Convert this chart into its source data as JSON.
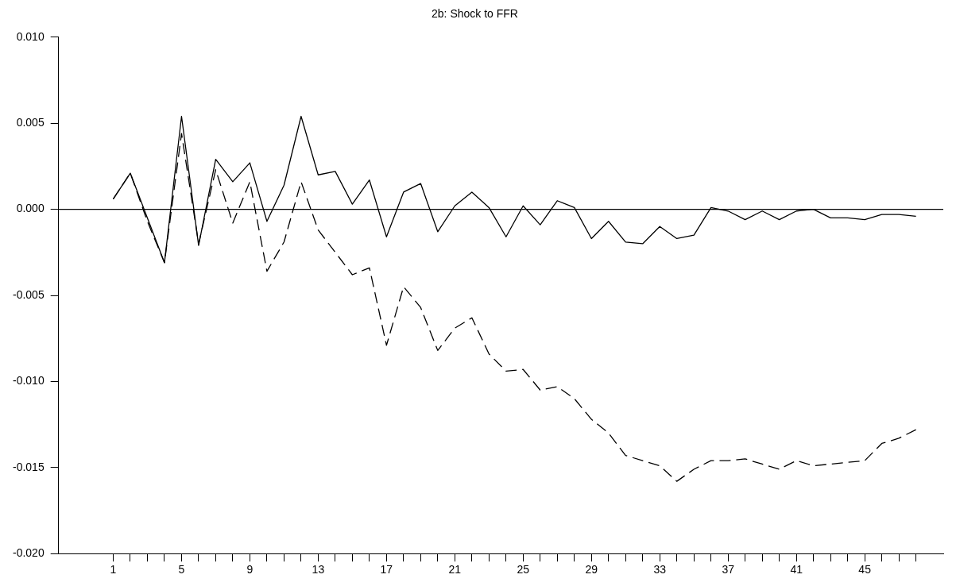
{
  "chart_data": {
    "type": "line",
    "title": "2b: Shock to FFR",
    "x": [
      1,
      2,
      3,
      4,
      5,
      6,
      7,
      8,
      9,
      10,
      11,
      12,
      13,
      14,
      15,
      16,
      17,
      18,
      19,
      20,
      21,
      22,
      23,
      24,
      25,
      26,
      27,
      28,
      29,
      30,
      31,
      32,
      33,
      34,
      35,
      36,
      37,
      38,
      39,
      40,
      41,
      42,
      43,
      44,
      45,
      46,
      47,
      48
    ],
    "xlim": [
      -2.2,
      49.6
    ],
    "xticks": [
      1,
      {
        "value": 2,
        "label": null
      },
      {
        "value": 3,
        "label": null
      },
      {
        "value": 4,
        "label": null
      },
      5,
      {
        "value": 6,
        "label": null
      },
      {
        "value": 7,
        "label": null
      },
      {
        "value": 8,
        "label": null
      },
      9,
      {
        "value": 10,
        "label": null
      },
      {
        "value": 11,
        "label": null
      },
      {
        "value": 12,
        "label": null
      },
      13,
      {
        "value": 14,
        "label": null
      },
      {
        "value": 15,
        "label": null
      },
      {
        "value": 16,
        "label": null
      },
      17,
      {
        "value": 18,
        "label": null
      },
      {
        "value": 19,
        "label": null
      },
      {
        "value": 20,
        "label": null
      },
      21,
      {
        "value": 22,
        "label": null
      },
      {
        "value": 23,
        "label": null
      },
      {
        "value": 24,
        "label": null
      },
      25,
      {
        "value": 26,
        "label": null
      },
      {
        "value": 27,
        "label": null
      },
      {
        "value": 28,
        "label": null
      },
      29,
      {
        "value": 30,
        "label": null
      },
      {
        "value": 31,
        "label": null
      },
      {
        "value": 32,
        "label": null
      },
      33,
      {
        "value": 34,
        "label": null
      },
      {
        "value": 35,
        "label": null
      },
      {
        "value": 36,
        "label": null
      },
      37,
      {
        "value": 38,
        "label": null
      },
      {
        "value": 39,
        "label": null
      },
      {
        "value": 40,
        "label": null
      },
      41,
      {
        "value": 42,
        "label": null
      },
      {
        "value": 43,
        "label": null
      },
      {
        "value": 44,
        "label": null
      },
      45,
      {
        "value": 46,
        "label": null
      },
      {
        "value": 47,
        "label": null
      },
      {
        "value": 48,
        "label": null
      }
    ],
    "ylim": [
      -0.02,
      0.01
    ],
    "yticks": [
      {
        "value": -0.02,
        "label": "-0.020"
      },
      {
        "value": -0.015,
        "label": "-0.015"
      },
      {
        "value": -0.01,
        "label": "-0.010"
      },
      {
        "value": -0.005,
        "label": "-0.005"
      },
      {
        "value": 0,
        "label": "0.000"
      },
      {
        "value": 0.005,
        "label": "0.005"
      },
      {
        "value": 0.01,
        "label": "0.010"
      }
    ],
    "grid": false,
    "legend": false,
    "marker": "none",
    "ref_lines": [
      {
        "axis": "y",
        "value": 0,
        "color": "#000000"
      }
    ],
    "series": [
      {
        "color": "#000000",
        "line_style": "solid",
        "values": [
          0.0006,
          0.0021,
          -0.0005,
          -0.0031,
          0.0054,
          -0.0021,
          0.0029,
          0.0016,
          0.0027,
          -0.0007,
          0.0014,
          0.0054,
          0.002,
          0.0022,
          0.0003,
          0.0017,
          -0.0016,
          0.001,
          0.0015,
          -0.0013,
          0.0002,
          0.001,
          0.0001,
          -0.0016,
          0.0002,
          -0.0009,
          0.0005,
          0.0001,
          -0.0017,
          -0.0007,
          -0.0019,
          -0.002,
          -0.001,
          -0.0017,
          -0.0015,
          0.0001,
          -0.0001,
          -0.0006,
          -0.0001,
          -0.0006,
          -0.0001,
          0,
          -0.0005,
          -0.0005,
          -0.0006,
          -0.0003,
          -0.0003,
          -0.0004
        ]
      },
      {
        "color": "#000000",
        "line_style": "dashed",
        "values": [
          0.0006,
          0.0021,
          -0.0007,
          -0.0031,
          0.0044,
          -0.002,
          0.0023,
          -0.0008,
          0.0016,
          -0.0036,
          -0.0019,
          0.0016,
          -0.0012,
          -0.0025,
          -0.0038,
          -0.0034,
          -0.0079,
          -0.0045,
          -0.0057,
          -0.0082,
          -0.0069,
          -0.0063,
          -0.0084,
          -0.0094,
          -0.0093,
          -0.0105,
          -0.0103,
          -0.011,
          -0.0122,
          -0.013,
          -0.0143,
          -0.0146,
          -0.0149,
          -0.0158,
          -0.0151,
          -0.0146,
          -0.0146,
          -0.0145,
          -0.0148,
          -0.0151,
          -0.0146,
          -0.0149,
          -0.0148,
          -0.0147,
          -0.0146,
          -0.0136,
          -0.0133,
          -0.0128
        ]
      }
    ]
  }
}
